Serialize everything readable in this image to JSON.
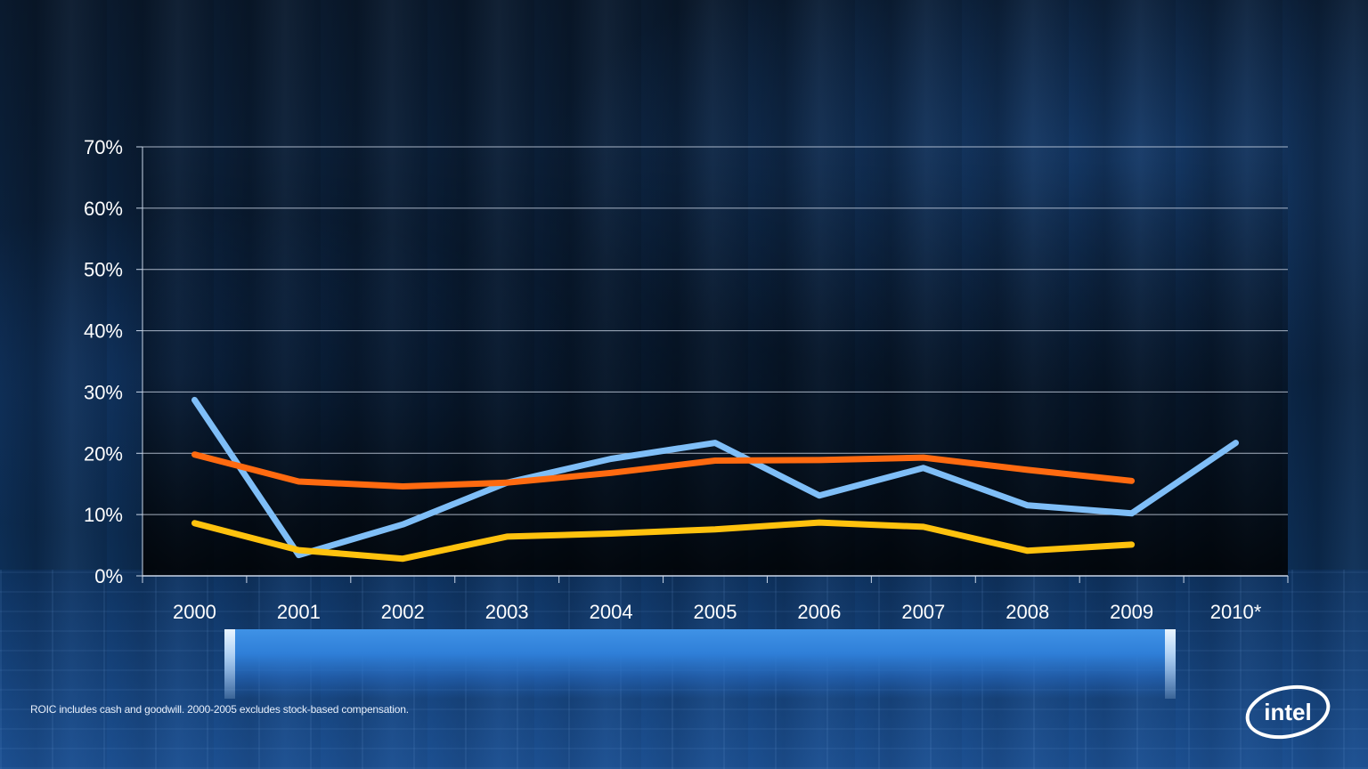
{
  "footnote": "ROIC includes cash and goodwill. 2000-2005 excludes stock-based compensation.",
  "logo": {
    "text": "intel",
    "color": "#ffffff"
  },
  "chart_data": {
    "type": "line",
    "title": "",
    "xlabel": "",
    "ylabel": "",
    "categories": [
      "2000",
      "2001",
      "2002",
      "2003",
      "2004",
      "2005",
      "2006",
      "2007",
      "2008",
      "2009",
      "2010*"
    ],
    "ylim": [
      0,
      70
    ],
    "yticks": [
      0,
      10,
      20,
      30,
      40,
      50,
      60,
      70
    ],
    "ytick_labels": [
      "0%",
      "10%",
      "20%",
      "30%",
      "40%",
      "50%",
      "60%",
      "70%"
    ],
    "grid": true,
    "legend": "none",
    "series": [
      {
        "color": "#7fbef7",
        "values": [
          28.7,
          3.4,
          8.4,
          15.2,
          19.1,
          21.7,
          13.1,
          17.6,
          11.5,
          10.2,
          21.7
        ]
      },
      {
        "color": "#ff6a10",
        "values": [
          19.8,
          15.4,
          14.6,
          15.2,
          16.8,
          18.8,
          18.9,
          19.3,
          17.3,
          15.5,
          null
        ]
      },
      {
        "color": "#ffc20e",
        "values": [
          8.6,
          4.2,
          2.8,
          6.4,
          6.9,
          7.6,
          8.7,
          8.0,
          4.1,
          5.1,
          null
        ]
      }
    ]
  }
}
